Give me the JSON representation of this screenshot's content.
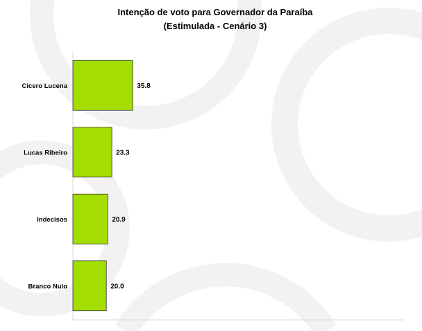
{
  "chart_data": {
    "type": "bar",
    "orientation": "horizontal",
    "title": "Intenção de voto para Governador da Paraíba",
    "subtitle": "(Estimulada - Cenário 3)",
    "categories": [
      "Cicero Lucena",
      "Lucas Ribeiro",
      "Indecisos",
      "Branco Nulo"
    ],
    "values": [
      35.8,
      23.3,
      20.9,
      20.0
    ],
    "value_labels": [
      "35.8",
      "23.3",
      "20.9",
      "20.0"
    ],
    "xlim": [
      0,
      100
    ],
    "grid": false,
    "legend": "none",
    "colors": {
      "bar_fill": "#a4dd00",
      "bar_stroke": "#333333",
      "axis": "#d9d9d9"
    }
  }
}
